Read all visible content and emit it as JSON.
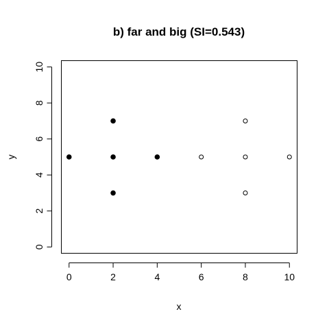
{
  "chart_data": {
    "type": "scatter",
    "title": "b) far and big (SI=0.543)",
    "xlabel": "x",
    "ylabel": "y",
    "xlim": [
      -0.35,
      10.35
    ],
    "ylim": [
      -0.35,
      10.35
    ],
    "xticks": [
      0,
      2,
      4,
      6,
      8,
      10
    ],
    "yticks": [
      0,
      2,
      4,
      6,
      8,
      10
    ],
    "grid": false,
    "legend": "none",
    "series": [
      {
        "marker": "filled-circle",
        "color": "#000000",
        "points": [
          {
            "x": 0,
            "y": 5
          },
          {
            "x": 2,
            "y": 7
          },
          {
            "x": 2,
            "y": 5
          },
          {
            "x": 2,
            "y": 3
          },
          {
            "x": 4,
            "y": 5
          }
        ]
      },
      {
        "marker": "open-circle",
        "color": "#000000",
        "points": [
          {
            "x": 6,
            "y": 5
          },
          {
            "x": 8,
            "y": 7
          },
          {
            "x": 8,
            "y": 5
          },
          {
            "x": 8,
            "y": 3
          },
          {
            "x": 10,
            "y": 5
          }
        ]
      }
    ]
  }
}
